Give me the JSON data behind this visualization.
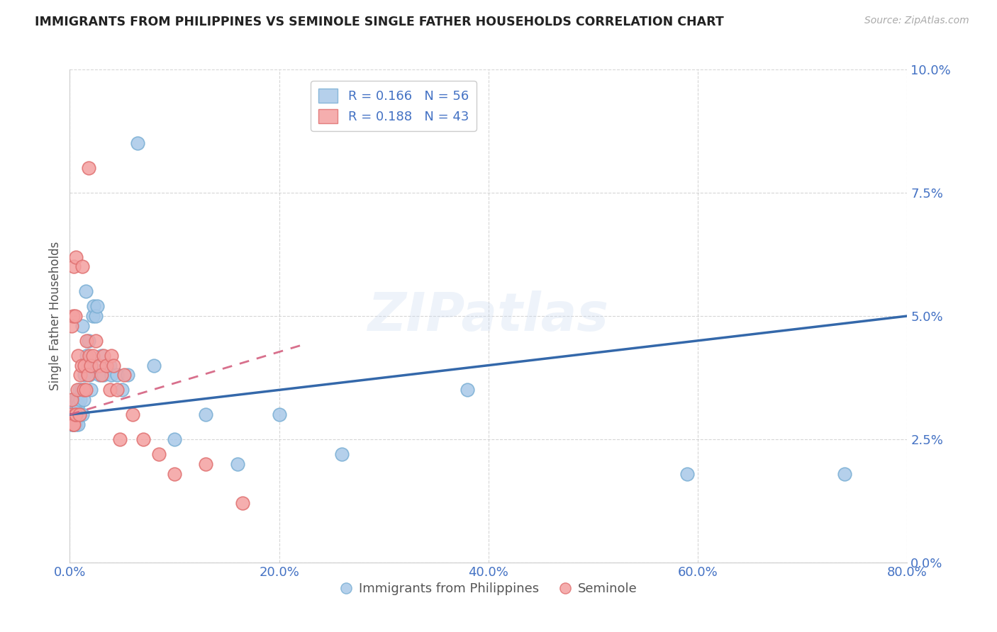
{
  "title": "IMMIGRANTS FROM PHILIPPINES VS SEMINOLE SINGLE FATHER HOUSEHOLDS CORRELATION CHART",
  "source": "Source: ZipAtlas.com",
  "xlabel_ticks": [
    "0.0%",
    "20.0%",
    "40.0%",
    "60.0%",
    "80.0%"
  ],
  "ylabel_ticks": [
    "0.0%",
    "2.5%",
    "5.0%",
    "7.5%",
    "10.0%"
  ],
  "xlim": [
    0.0,
    0.8
  ],
  "ylim": [
    0.0,
    0.1
  ],
  "legend1_R": "0.166",
  "legend1_N": "56",
  "legend2_R": "0.188",
  "legend2_N": "43",
  "blue_color": "#a8c8e8",
  "blue_edge_color": "#7aafd4",
  "pink_color": "#f4a0a0",
  "pink_edge_color": "#e07070",
  "blue_line_color": "#3468aa",
  "pink_line_color": "#d46080",
  "watermark": "ZIPatlas",
  "blue_scatter_x": [
    0.001,
    0.002,
    0.002,
    0.003,
    0.003,
    0.003,
    0.004,
    0.004,
    0.005,
    0.005,
    0.005,
    0.006,
    0.006,
    0.007,
    0.007,
    0.008,
    0.008,
    0.009,
    0.009,
    0.01,
    0.01,
    0.011,
    0.012,
    0.012,
    0.013,
    0.014,
    0.015,
    0.016,
    0.017,
    0.018,
    0.019,
    0.02,
    0.021,
    0.022,
    0.023,
    0.025,
    0.026,
    0.028,
    0.03,
    0.032,
    0.035,
    0.038,
    0.04,
    0.045,
    0.05,
    0.055,
    0.065,
    0.08,
    0.1,
    0.13,
    0.16,
    0.2,
    0.26,
    0.38,
    0.59,
    0.74
  ],
  "blue_scatter_y": [
    0.03,
    0.032,
    0.028,
    0.033,
    0.03,
    0.028,
    0.032,
    0.028,
    0.033,
    0.03,
    0.032,
    0.03,
    0.028,
    0.033,
    0.03,
    0.032,
    0.028,
    0.035,
    0.03,
    0.033,
    0.03,
    0.035,
    0.03,
    0.048,
    0.033,
    0.038,
    0.055,
    0.042,
    0.04,
    0.045,
    0.038,
    0.035,
    0.04,
    0.05,
    0.052,
    0.05,
    0.052,
    0.038,
    0.042,
    0.038,
    0.04,
    0.04,
    0.038,
    0.038,
    0.035,
    0.038,
    0.085,
    0.04,
    0.025,
    0.03,
    0.02,
    0.03,
    0.022,
    0.035,
    0.018,
    0.018
  ],
  "pink_scatter_x": [
    0.001,
    0.002,
    0.002,
    0.003,
    0.003,
    0.004,
    0.004,
    0.005,
    0.005,
    0.006,
    0.006,
    0.007,
    0.008,
    0.009,
    0.01,
    0.011,
    0.012,
    0.013,
    0.014,
    0.015,
    0.016,
    0.017,
    0.018,
    0.019,
    0.02,
    0.022,
    0.025,
    0.028,
    0.03,
    0.032,
    0.035,
    0.038,
    0.04,
    0.042,
    0.045,
    0.048,
    0.052,
    0.06,
    0.07,
    0.085,
    0.1,
    0.13,
    0.165
  ],
  "pink_scatter_y": [
    0.03,
    0.048,
    0.033,
    0.028,
    0.05,
    0.06,
    0.028,
    0.05,
    0.03,
    0.062,
    0.03,
    0.035,
    0.042,
    0.03,
    0.038,
    0.04,
    0.06,
    0.035,
    0.04,
    0.035,
    0.045,
    0.038,
    0.08,
    0.042,
    0.04,
    0.042,
    0.045,
    0.04,
    0.038,
    0.042,
    0.04,
    0.035,
    0.042,
    0.04,
    0.035,
    0.025,
    0.038,
    0.03,
    0.025,
    0.022,
    0.018,
    0.02,
    0.012
  ],
  "blue_line_x0": 0.0,
  "blue_line_y0": 0.03,
  "blue_line_x1": 0.8,
  "blue_line_y1": 0.05,
  "pink_line_x0": 0.0,
  "pink_line_y0": 0.03,
  "pink_line_x1": 0.22,
  "pink_line_y1": 0.044
}
